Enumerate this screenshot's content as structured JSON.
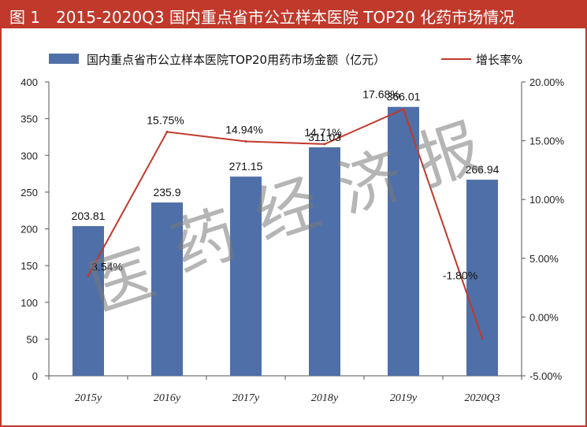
{
  "header": {
    "title": "图 1　2015-2020Q3 国内重点省市公立样本医院 TOP20 化药市场情况"
  },
  "watermark": "医药经济报",
  "colors": {
    "bar": "#4f6fa8",
    "line": "#c0392b",
    "title_bg": "#c0392b",
    "border": "#c0392b"
  },
  "chart_data": {
    "type": "bar",
    "categories": [
      "2015y",
      "2016y",
      "2017y",
      "2018y",
      "2019y",
      "2020Q3"
    ],
    "series": [
      {
        "name": "国内重点省市公立样本医院TOP20用药市场金额（亿元）",
        "type": "bar",
        "axis": "left",
        "values": [
          203.81,
          235.9,
          271.15,
          311.03,
          366.01,
          266.94
        ],
        "labels": [
          "203.81",
          "235.9",
          "271.15",
          "311.03",
          "366.01",
          "266.94"
        ]
      },
      {
        "name": "增长率%",
        "type": "line",
        "axis": "right",
        "values": [
          3.54,
          15.75,
          14.94,
          14.71,
          17.68,
          -1.8
        ],
        "labels": [
          "3.54%",
          "15.75%",
          "14.94%",
          "14.71%",
          "17.68%",
          "-1.80%"
        ]
      }
    ],
    "y_left": {
      "min": 0,
      "max": 400,
      "ticks": [
        "0",
        "50",
        "100",
        "150",
        "200",
        "250",
        "300",
        "350",
        "400"
      ]
    },
    "y_right": {
      "min": -5,
      "max": 20,
      "ticks": [
        "-5.00%",
        "0.00%",
        "5.00%",
        "10.00%",
        "15.00%",
        "20.00%"
      ]
    },
    "legend_position": "top",
    "grid": false
  }
}
